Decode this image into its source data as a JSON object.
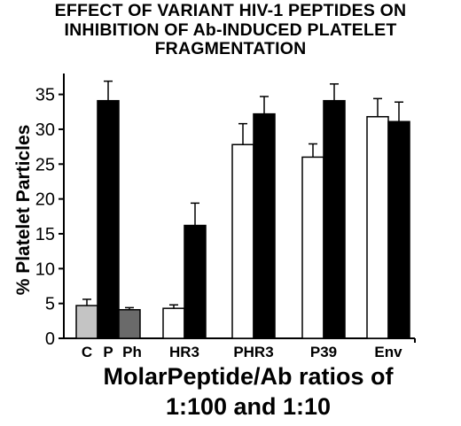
{
  "chart_data": {
    "type": "bar",
    "title": [
      "EFFECT OF VARIANT HIV-1 PEPTIDES ON",
      "INHIBITION OF Ab-INDUCED PLATELET",
      "FRAGMENTATION"
    ],
    "ylabel": "% Platelet Particles",
    "xlabel": [
      "MolarPeptide/Ab  ratios of",
      "1:100 and 1:10"
    ],
    "ylim": [
      0,
      38
    ],
    "yticks": [
      0,
      5,
      10,
      15,
      20,
      25,
      30,
      35
    ],
    "ytick_labels": [
      "0",
      "5",
      "10",
      "15",
      "20",
      "25",
      "30",
      "35"
    ],
    "grid": false,
    "groups": [
      {
        "label": "",
        "bars": [
          {
            "label": "C",
            "value": 4.7,
            "error": 0.9,
            "color": "#c4c4c4"
          },
          {
            "label": "P",
            "value": 34.1,
            "error": 2.8,
            "color": "#000000"
          },
          {
            "label": "Ph",
            "value": 4.1,
            "error": 0.3,
            "color": "#6a6a6a"
          }
        ]
      },
      {
        "label": "HR3",
        "bars": [
          {
            "label": "1:100",
            "value": 4.3,
            "error": 0.5,
            "color": "#ffffff"
          },
          {
            "label": "1:10",
            "value": 16.2,
            "error": 3.2,
            "color": "#000000"
          }
        ]
      },
      {
        "label": "PHR3",
        "bars": [
          {
            "label": "1:100",
            "value": 27.8,
            "error": 3.0,
            "color": "#ffffff"
          },
          {
            "label": "1:10",
            "value": 32.2,
            "error": 2.5,
            "color": "#000000"
          }
        ]
      },
      {
        "label": "P39",
        "bars": [
          {
            "label": "1:100",
            "value": 26.0,
            "error": 1.9,
            "color": "#ffffff"
          },
          {
            "label": "1:10",
            "value": 34.1,
            "error": 2.4,
            "color": "#000000"
          }
        ]
      },
      {
        "label": "Env",
        "bars": [
          {
            "label": "1:100",
            "value": 31.8,
            "error": 2.6,
            "color": "#ffffff"
          },
          {
            "label": "1:10",
            "value": 31.1,
            "error": 2.8,
            "color": "#000000"
          }
        ]
      }
    ]
  }
}
